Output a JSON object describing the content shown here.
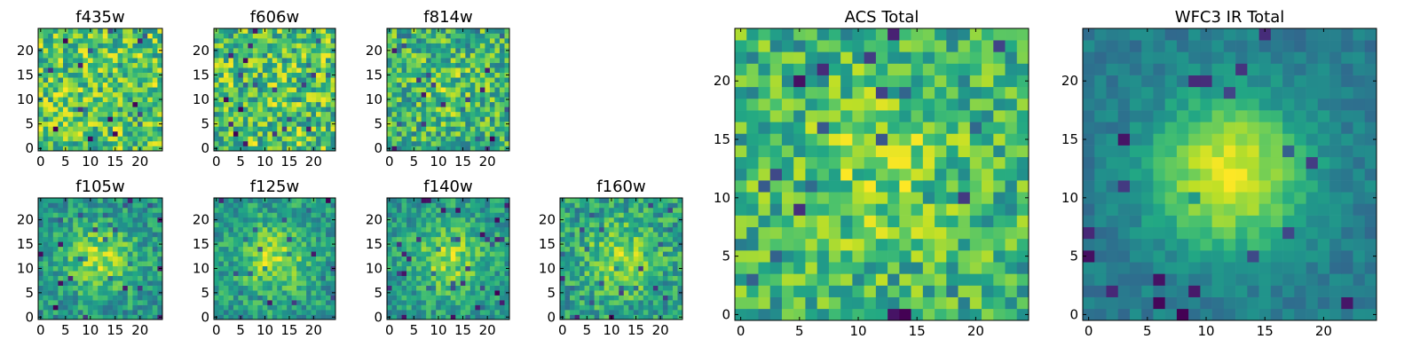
{
  "figure": {
    "title": ""
  },
  "chart_data": [
    {
      "type": "heatmap",
      "title": "f435w",
      "xticks": [
        "0",
        "5",
        "10",
        "15",
        "20"
      ],
      "yticks": [
        "0",
        "5",
        "10",
        "15",
        "20"
      ],
      "xlim": [
        -0.5,
        24.5
      ],
      "ylim": [
        -0.5,
        24.5
      ],
      "grid": false,
      "colormap": "viridis",
      "pattern": {
        "kind": "noise",
        "seed": 11,
        "amp": 0.0,
        "width": 6,
        "noise": 0.55
      },
      "values": []
    },
    {
      "type": "heatmap",
      "title": "f606w",
      "xticks": [
        "0",
        "5",
        "10",
        "15",
        "20"
      ],
      "yticks": [
        "0",
        "5",
        "10",
        "15",
        "20"
      ],
      "xlim": [
        -0.5,
        24.5
      ],
      "ylim": [
        -0.5,
        24.5
      ],
      "grid": false,
      "colormap": "viridis",
      "pattern": {
        "kind": "noise",
        "seed": 23,
        "amp": 0.0,
        "width": 6,
        "noise": 0.6
      },
      "values": []
    },
    {
      "type": "heatmap",
      "title": "f814w",
      "xticks": [
        "0",
        "5",
        "10",
        "15",
        "20"
      ],
      "yticks": [
        "0",
        "5",
        "10",
        "15",
        "20"
      ],
      "xlim": [
        -0.5,
        24.5
      ],
      "ylim": [
        -0.5,
        24.5
      ],
      "grid": false,
      "colormap": "viridis",
      "pattern": {
        "kind": "noise",
        "seed": 37,
        "amp": 0.12,
        "width": 5,
        "noise": 0.6
      },
      "values": []
    },
    {
      "type": "heatmap",
      "title": "f105w",
      "xticks": [
        "0",
        "5",
        "10",
        "15",
        "20"
      ],
      "yticks": [
        "0",
        "5",
        "10",
        "15",
        "20"
      ],
      "xlim": [
        -0.5,
        24.5
      ],
      "ylim": [
        -0.5,
        24.5
      ],
      "grid": false,
      "colormap": "viridis",
      "pattern": {
        "kind": "source",
        "seed": 41,
        "amp": 0.35,
        "width": 5,
        "noise": 0.4
      },
      "values": []
    },
    {
      "type": "heatmap",
      "title": "f125w",
      "xticks": [
        "0",
        "5",
        "10",
        "15",
        "20"
      ],
      "yticks": [
        "0",
        "5",
        "10",
        "15",
        "20"
      ],
      "xlim": [
        -0.5,
        24.5
      ],
      "ylim": [
        -0.5,
        24.5
      ],
      "grid": false,
      "colormap": "viridis",
      "pattern": {
        "kind": "source",
        "seed": 53,
        "amp": 0.35,
        "width": 5,
        "noise": 0.4
      },
      "values": []
    },
    {
      "type": "heatmap",
      "title": "f140w",
      "xticks": [
        "0",
        "5",
        "10",
        "15",
        "20"
      ],
      "yticks": [
        "0",
        "5",
        "10",
        "15",
        "20"
      ],
      "xlim": [
        -0.5,
        24.5
      ],
      "ylim": [
        -0.5,
        24.5
      ],
      "grid": false,
      "colormap": "viridis",
      "pattern": {
        "kind": "source",
        "seed": 67,
        "amp": 0.35,
        "width": 5,
        "noise": 0.4
      },
      "values": []
    },
    {
      "type": "heatmap",
      "title": "f160w",
      "xticks": [
        "0",
        "5",
        "10",
        "15",
        "20"
      ],
      "yticks": [
        "0",
        "5",
        "10",
        "15",
        "20"
      ],
      "xlim": [
        -0.5,
        24.5
      ],
      "ylim": [
        -0.5,
        24.5
      ],
      "grid": false,
      "colormap": "viridis",
      "pattern": {
        "kind": "source",
        "seed": 79,
        "amp": 0.3,
        "width": 5,
        "noise": 0.45
      },
      "values": []
    },
    {
      "type": "heatmap",
      "title": "ACS Total",
      "xticks": [
        "0",
        "5",
        "10",
        "15",
        "20"
      ],
      "yticks": [
        "0",
        "5",
        "10",
        "15",
        "20"
      ],
      "xlim": [
        -0.5,
        24.5
      ],
      "ylim": [
        -0.5,
        24.5
      ],
      "grid": false,
      "colormap": "viridis",
      "pattern": {
        "kind": "source",
        "seed": 97,
        "amp": 0.18,
        "width": 5,
        "noise": 0.5
      },
      "values": []
    },
    {
      "type": "heatmap",
      "title": "WFC3 IR Total",
      "xticks": [
        "0",
        "5",
        "10",
        "15",
        "20"
      ],
      "yticks": [
        "0",
        "5",
        "10",
        "15",
        "20"
      ],
      "xlim": [
        -0.5,
        24.5
      ],
      "ylim": [
        -0.5,
        24.5
      ],
      "grid": false,
      "colormap": "viridis",
      "pattern": {
        "kind": "source",
        "seed": 113,
        "amp": 0.75,
        "width": 4.5,
        "noise": 0.22
      },
      "values": []
    }
  ],
  "colors": {
    "background": "#ffffff",
    "axis": "#000000"
  }
}
